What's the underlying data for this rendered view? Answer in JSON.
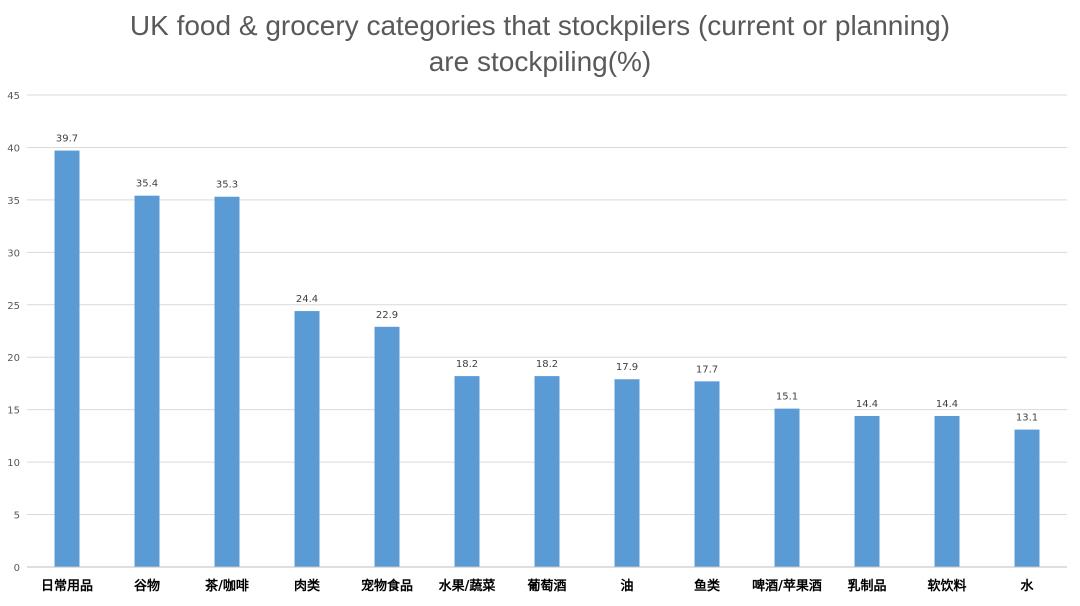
{
  "chart_data": {
    "type": "bar",
    "title_line1": "UK food & grocery categories that stockpilers (current or planning)",
    "title_line2": "are stockpiling(%)",
    "xlabel": "",
    "ylabel": "",
    "ylim": [
      0,
      45
    ],
    "yticks": [
      0,
      5,
      10,
      15,
      20,
      25,
      30,
      35,
      40,
      45
    ],
    "grid": true,
    "legend": "none",
    "bar_color": "#5B9BD5",
    "categories": [
      "日常用品",
      "谷物",
      "茶/咖啡",
      "肉类",
      "宠物食品",
      "水果/蔬菜",
      "葡萄酒",
      "油",
      "鱼类",
      "啤酒/苹果酒",
      "乳制品",
      "软饮料",
      "水"
    ],
    "values": [
      39.7,
      35.4,
      35.3,
      24.4,
      22.9,
      18.2,
      18.2,
      17.9,
      17.7,
      15.1,
      14.4,
      14.4,
      13.1
    ]
  }
}
